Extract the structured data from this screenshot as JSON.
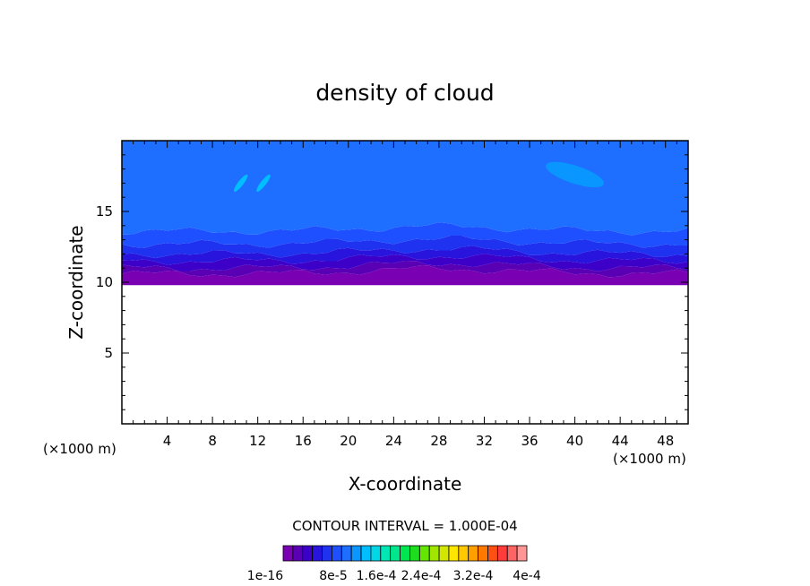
{
  "chart_data": {
    "type": "contour",
    "title": "density of cloud",
    "xlabel": "X-coordinate",
    "ylabel": "Z-coordinate",
    "x_unit_left": "(×1000 m)",
    "x_unit_right": "(×1000 m)",
    "xlim": [
      0,
      50
    ],
    "ylim": [
      0,
      20
    ],
    "xticks": [
      4,
      8,
      12,
      16,
      20,
      24,
      28,
      32,
      36,
      40,
      44,
      48
    ],
    "yticks": [
      5,
      10,
      15
    ],
    "contour_interval_text": "CONTOUR INTERVAL = 1.000E-04",
    "colorbar": {
      "colors": [
        "#7a00b4",
        "#5a00b4",
        "#3c00c8",
        "#2814dc",
        "#1e32f0",
        "#1e50ff",
        "#1e6eff",
        "#0a96ff",
        "#00beff",
        "#00d7e6",
        "#00e6b4",
        "#00e68c",
        "#00e650",
        "#1edc1e",
        "#64e600",
        "#a0e600",
        "#d2e600",
        "#ffe600",
        "#ffc800",
        "#ffa000",
        "#ff7800",
        "#ff5014",
        "#ff3c3c",
        "#ff6464",
        "#ff9696"
      ],
      "labels": [
        "1e-16",
        "8e-5",
        "1.6e-4",
        "2.4e-4",
        "3.2e-4",
        "4e-4"
      ]
    },
    "bands": [
      {
        "z_bottom": 9.8,
        "z_top": 10.6,
        "color": "#7a00b4"
      },
      {
        "z_bottom": 10.6,
        "z_top": 11.0,
        "color": "#5a00b4"
      },
      {
        "z_bottom": 11.0,
        "z_top": 11.5,
        "color": "#3c00c8"
      },
      {
        "z_bottom": 11.5,
        "z_top": 12.0,
        "color": "#2814dc"
      },
      {
        "z_bottom": 12.0,
        "z_top": 12.7,
        "color": "#1e32f0"
      },
      {
        "z_bottom": 12.7,
        "z_top": 13.6,
        "color": "#1e50ff"
      },
      {
        "z_bottom": 13.6,
        "z_top": 20.0,
        "color": "#1e6eff"
      }
    ],
    "patches": [
      {
        "x": 40,
        "z": 17.6,
        "color": "#0a96ff"
      },
      {
        "x": 10.5,
        "z": 17.0,
        "color": "#00beff"
      },
      {
        "x": 12.5,
        "z": 17.0,
        "color": "#00beff"
      }
    ]
  }
}
